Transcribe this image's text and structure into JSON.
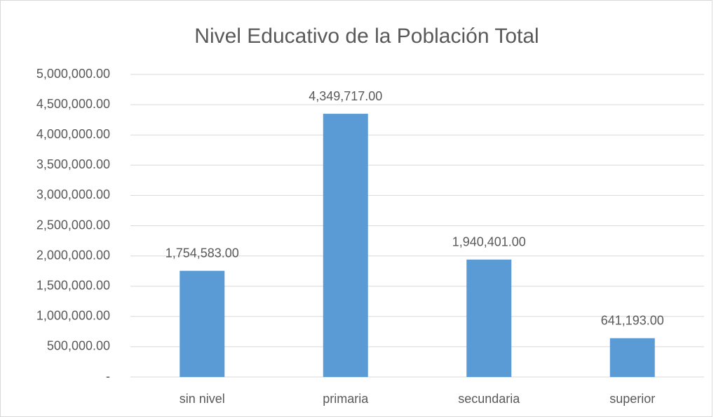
{
  "chart_data": {
    "type": "bar",
    "title": "Nivel Educativo de la Población Total",
    "categories": [
      "sin nivel",
      "primaria",
      "secundaria",
      "superior"
    ],
    "values": [
      1754583,
      4349717,
      1940401,
      641193
    ],
    "value_labels": [
      "1,754,583.00",
      "4,349,717.00",
      "1,940,401.00",
      "641,193.00"
    ],
    "color": "#5b9bd5",
    "ylim": [
      0,
      5000000
    ],
    "yticks": [
      {
        "value": 0,
        "label": "-"
      },
      {
        "value": 500000,
        "label": "500,000.00"
      },
      {
        "value": 1000000,
        "label": "1,000,000.00"
      },
      {
        "value": 1500000,
        "label": "1,500,000.00"
      },
      {
        "value": 2000000,
        "label": "2,000,000.00"
      },
      {
        "value": 2500000,
        "label": "2,500,000.00"
      },
      {
        "value": 3000000,
        "label": "3,000,000.00"
      },
      {
        "value": 3500000,
        "label": "3,500,000.00"
      },
      {
        "value": 4000000,
        "label": "4,000,000.00"
      },
      {
        "value": 4500000,
        "label": "4,500,000.00"
      },
      {
        "value": 5000000,
        "label": "5,000,000.00"
      }
    ],
    "grid": true
  }
}
